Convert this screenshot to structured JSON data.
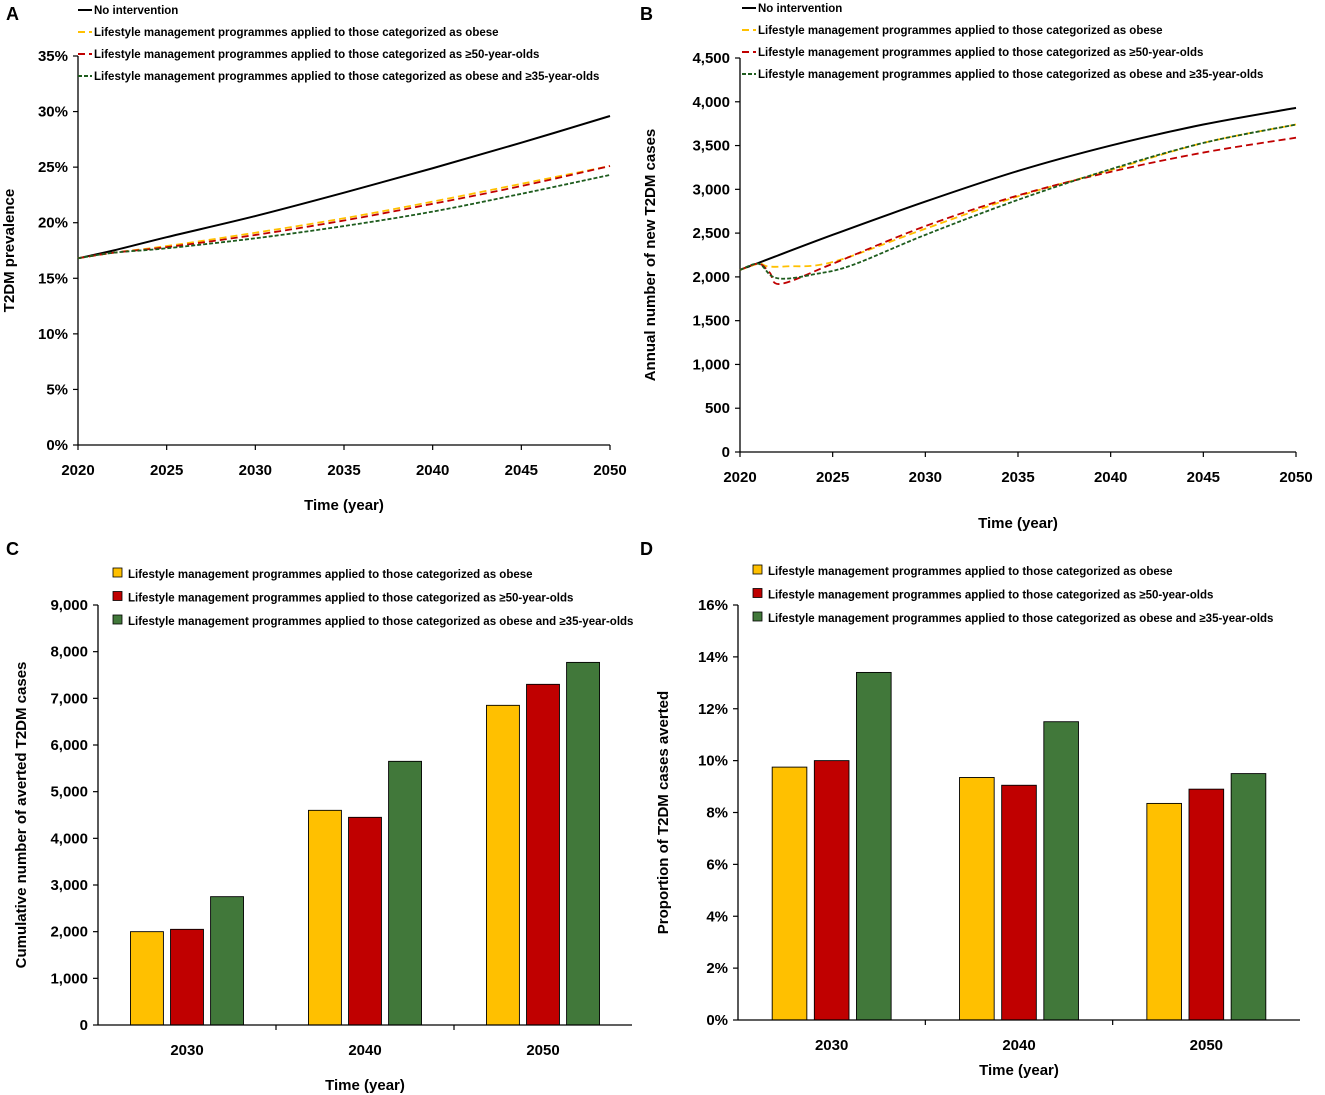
{
  "legend_labels": {
    "none": "No intervention",
    "obese": "Lifestyle management programmes applied to those categorized as obese",
    "age50": "Lifestyle management programmes applied to those categorized as ≥50-year-olds",
    "obese35": "Lifestyle management programmes applied to those categorized as obese and ≥35-year-olds"
  },
  "colors": {
    "none": "#000000",
    "obese": "#FFC000",
    "age50": "#C00000",
    "obese35": "#1E5C1E",
    "obese_bar": "#FFC000",
    "age50_bar": "#C00000",
    "obese35_bar": "#41783A"
  },
  "chart_data": [
    {
      "panel": "A",
      "type": "line",
      "title": "",
      "xlabel": "Time (year)",
      "ylabel": "T2DM prevalence",
      "xlim": [
        2020,
        2050
      ],
      "ylim": [
        0,
        35
      ],
      "x_ticks": [
        "2020",
        "2025",
        "2030",
        "2035",
        "2040",
        "2045",
        "2050"
      ],
      "y_ticks": [
        "0%",
        "5%",
        "10%",
        "15%",
        "20%",
        "25%",
        "30%",
        "35%"
      ],
      "x": [
        2020,
        2022,
        2025,
        2030,
        2035,
        2040,
        2045,
        2050
      ],
      "series": [
        {
          "key": "none",
          "name": "No intervention",
          "style": "solid",
          "values": [
            16.8,
            17.5,
            18.7,
            20.6,
            22.7,
            24.9,
            27.2,
            29.6
          ]
        },
        {
          "key": "obese",
          "name": "Lifestyle management programmes applied to those categorized as obese",
          "style": "dashed",
          "values": [
            16.8,
            17.3,
            17.9,
            19.1,
            20.4,
            21.9,
            23.5,
            25.1
          ]
        },
        {
          "key": "age50",
          "name": "Lifestyle management programmes applied to those categorized as ≥50-year-olds",
          "style": "dashed",
          "values": [
            16.8,
            17.3,
            17.8,
            18.9,
            20.2,
            21.7,
            23.3,
            25.1
          ]
        },
        {
          "key": "obese35",
          "name": "Lifestyle management programmes applied to those categorized as obese and ≥35-year-olds",
          "style": "dashed",
          "values": [
            16.8,
            17.3,
            17.7,
            18.6,
            19.7,
            21.0,
            22.6,
            24.3
          ]
        }
      ]
    },
    {
      "panel": "B",
      "type": "line",
      "title": "",
      "xlabel": "Time (year)",
      "ylabel": "Annual number of new T2DM cases",
      "xlim": [
        2020,
        2050
      ],
      "ylim": [
        0,
        4500
      ],
      "x_ticks": [
        "2020",
        "2025",
        "2030",
        "2035",
        "2040",
        "2045",
        "2050"
      ],
      "y_ticks": [
        "0",
        "500",
        "1,000",
        "1,500",
        "2,000",
        "2,500",
        "3,000",
        "3,500",
        "4,000",
        "4,500"
      ],
      "series": [
        {
          "key": "none",
          "name": "No intervention",
          "style": "solid",
          "x": [
            2020,
            2021,
            2025,
            2030,
            2035,
            2040,
            2045,
            2050
          ],
          "values": [
            2080,
            2160,
            2480,
            2860,
            3210,
            3500,
            3740,
            3930
          ]
        },
        {
          "key": "obese",
          "name": "Lifestyle management programmes applied to those categorized as obese",
          "style": "dashed",
          "x": [
            2020,
            2021,
            2021.5,
            2022.5,
            2025,
            2030,
            2035,
            2040,
            2045,
            2050
          ],
          "values": [
            2080,
            2150,
            2120,
            2120,
            2170,
            2550,
            2920,
            3220,
            3530,
            3740
          ]
        },
        {
          "key": "age50",
          "name": "Lifestyle management programmes applied to those categorized as ≥50-year-olds",
          "style": "dashed",
          "x": [
            2020,
            2021,
            2021.6,
            2022.2,
            2025,
            2030,
            2035,
            2040,
            2045,
            2050
          ],
          "values": [
            2080,
            2150,
            2050,
            1920,
            2150,
            2580,
            2930,
            3200,
            3420,
            3590
          ]
        },
        {
          "key": "obese35",
          "name": "Lifestyle management programmes applied to those categorized as obese and ≥35-year-olds",
          "style": "dashed",
          "x": [
            2020,
            2021,
            2021.7,
            2022.5,
            2024,
            2026,
            2030,
            2035,
            2040,
            2045,
            2050
          ],
          "values": [
            2080,
            2150,
            2010,
            1980,
            2030,
            2130,
            2480,
            2880,
            3230,
            3530,
            3740
          ]
        }
      ]
    },
    {
      "panel": "C",
      "type": "bar",
      "title": "",
      "xlabel": "Time (year)",
      "ylabel": "Cumulative number of averted T2DM cases",
      "categories": [
        "2030",
        "2040",
        "2050"
      ],
      "ylim": [
        0,
        9000
      ],
      "y_ticks": [
        "0",
        "1,000",
        "2,000",
        "3,000",
        "4,000",
        "5,000",
        "6,000",
        "7,000",
        "8,000",
        "9,000"
      ],
      "series": [
        {
          "key": "obese",
          "name": "Lifestyle management programmes applied to those categorized as obese",
          "values": [
            2000,
            4600,
            6850
          ]
        },
        {
          "key": "age50",
          "name": "Lifestyle management programmes applied to those categorized as ≥50-year-olds",
          "values": [
            2050,
            4450,
            7300
          ]
        },
        {
          "key": "obese35",
          "name": "Lifestyle management programmes applied to those categorized as obese and ≥35-year-olds",
          "values": [
            2750,
            5650,
            7770
          ]
        }
      ]
    },
    {
      "panel": "D",
      "type": "bar",
      "title": "",
      "xlabel": "Time (year)",
      "ylabel": "Proportion of T2DM cases averted",
      "categories": [
        "2030",
        "2040",
        "2050"
      ],
      "ylim": [
        0,
        16
      ],
      "y_ticks": [
        "0%",
        "2%",
        "4%",
        "6%",
        "8%",
        "10%",
        "12%",
        "14%",
        "16%"
      ],
      "series": [
        {
          "key": "obese",
          "name": "Lifestyle management programmes applied to those categorized as obese",
          "values": [
            9.75,
            9.35,
            8.35
          ]
        },
        {
          "key": "age50",
          "name": "Lifestyle management programmes applied to those categorized as ≥50-year-olds",
          "values": [
            10.0,
            9.05,
            8.9
          ]
        },
        {
          "key": "obese35",
          "name": "Lifestyle management programmes applied to those categorized as obese and ≥35-year-olds",
          "values": [
            13.4,
            11.5,
            9.5
          ]
        }
      ]
    }
  ]
}
